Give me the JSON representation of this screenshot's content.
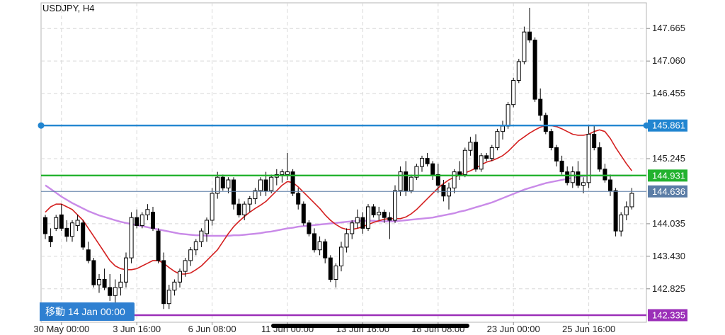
{
  "chart_data": {
    "type": "candlestick",
    "title": "USDJPY, H4",
    "ylim": [
      142.335,
      148.05
    ],
    "y_ticks": [
      "147.665",
      "147.060",
      "146.455",
      "145.245",
      "144.035",
      "143.430",
      "142.825"
    ],
    "x_ticks": [
      "30 May 00:00",
      "3 Jun 16:00",
      "6 Jun 08:00",
      "11 Jun 00:00",
      "13 Jun 16:00",
      "18 Jun 08:00",
      "23 Jun 00:00",
      "25 Jun 16:00"
    ],
    "x_tick_bars": [
      3,
      17,
      31,
      45,
      59,
      73,
      87,
      101
    ],
    "candles": [
      [
        144.15,
        144.2,
        143.75,
        143.85
      ],
      [
        143.8,
        143.95,
        143.6,
        143.7
      ],
      [
        143.95,
        144.2,
        143.9,
        144.15
      ],
      [
        144.2,
        144.4,
        143.9,
        143.95
      ],
      [
        143.95,
        144.1,
        143.7,
        143.8
      ],
      [
        143.8,
        144.1,
        143.7,
        144.05
      ],
      [
        144.0,
        144.2,
        143.9,
        144.1
      ],
      [
        144.05,
        144.1,
        143.55,
        143.6
      ],
      [
        143.55,
        143.7,
        143.3,
        143.35
      ],
      [
        143.35,
        143.4,
        142.85,
        142.9
      ],
      [
        142.9,
        143.1,
        142.75,
        143.0
      ],
      [
        143.0,
        143.2,
        142.8,
        142.85
      ],
      [
        142.85,
        143.1,
        142.6,
        142.7
      ],
      [
        142.7,
        143.0,
        142.5,
        142.85
      ],
      [
        142.85,
        143.1,
        142.7,
        142.95
      ],
      [
        142.95,
        143.5,
        142.85,
        143.4
      ],
      [
        143.4,
        144.25,
        143.3,
        144.15
      ],
      [
        144.15,
        144.3,
        143.95,
        144.0
      ],
      [
        144.0,
        144.25,
        143.95,
        144.2
      ],
      [
        144.2,
        144.4,
        144.1,
        144.3
      ],
      [
        144.25,
        144.35,
        143.9,
        143.95
      ],
      [
        143.9,
        143.95,
        143.3,
        143.35
      ],
      [
        143.35,
        143.5,
        142.45,
        142.55
      ],
      [
        142.55,
        142.9,
        142.45,
        142.8
      ],
      [
        142.8,
        143.0,
        142.7,
        142.95
      ],
      [
        142.95,
        143.2,
        142.85,
        143.15
      ],
      [
        143.15,
        143.4,
        143.05,
        143.35
      ],
      [
        143.35,
        143.6,
        143.25,
        143.55
      ],
      [
        143.55,
        143.75,
        143.45,
        143.7
      ],
      [
        143.7,
        143.95,
        143.6,
        143.9
      ],
      [
        143.85,
        144.15,
        143.7,
        144.1
      ],
      [
        144.1,
        144.7,
        144.0,
        144.6
      ],
      [
        144.6,
        145.0,
        144.5,
        144.9
      ],
      [
        144.9,
        144.95,
        144.65,
        144.7
      ],
      [
        144.7,
        144.9,
        144.6,
        144.85
      ],
      [
        144.85,
        144.9,
        144.3,
        144.4
      ],
      [
        144.4,
        144.5,
        144.15,
        144.2
      ],
      [
        144.2,
        144.45,
        144.1,
        144.4
      ],
      [
        144.4,
        144.55,
        144.25,
        144.5
      ],
      [
        144.5,
        144.7,
        144.4,
        144.65
      ],
      [
        144.65,
        144.9,
        144.55,
        144.85
      ],
      [
        144.85,
        145.0,
        144.55,
        144.65
      ],
      [
        144.65,
        144.95,
        144.6,
        144.9
      ],
      [
        144.9,
        145.05,
        144.75,
        144.95
      ],
      [
        144.95,
        145.05,
        144.8,
        145.0
      ],
      [
        144.95,
        145.35,
        144.85,
        145.0
      ],
      [
        145.0,
        145.05,
        144.55,
        144.6
      ],
      [
        144.6,
        144.7,
        144.3,
        144.4
      ],
      [
        144.4,
        144.45,
        144.0,
        144.05
      ],
      [
        144.05,
        144.1,
        143.8,
        143.85
      ],
      [
        143.85,
        143.95,
        143.5,
        143.55
      ],
      [
        143.55,
        143.8,
        143.45,
        143.7
      ],
      [
        143.7,
        143.75,
        143.3,
        143.4
      ],
      [
        143.4,
        143.45,
        142.95,
        143.0
      ],
      [
        143.0,
        143.3,
        142.85,
        143.25
      ],
      [
        143.25,
        143.7,
        143.15,
        143.6
      ],
      [
        143.6,
        143.95,
        143.5,
        143.85
      ],
      [
        143.85,
        144.1,
        143.75,
        144.05
      ],
      [
        144.05,
        144.3,
        143.95,
        144.15
      ],
      [
        144.15,
        144.25,
        143.85,
        143.95
      ],
      [
        143.95,
        144.4,
        143.9,
        144.35
      ],
      [
        144.35,
        144.4,
        144.15,
        144.2
      ],
      [
        144.2,
        144.35,
        144.1,
        144.25
      ],
      [
        144.25,
        144.3,
        144.05,
        144.15
      ],
      [
        144.15,
        144.25,
        143.75,
        144.1
      ],
      [
        144.1,
        144.75,
        144.05,
        144.65
      ],
      [
        144.65,
        145.1,
        144.55,
        145.0
      ],
      [
        145.0,
        145.2,
        144.55,
        144.65
      ],
      [
        144.65,
        144.95,
        144.6,
        144.9
      ],
      [
        144.9,
        145.15,
        144.85,
        145.1
      ],
      [
        145.1,
        145.3,
        145.0,
        145.25
      ],
      [
        145.25,
        145.35,
        145.1,
        145.15
      ],
      [
        145.15,
        145.2,
        144.85,
        144.95
      ],
      [
        144.95,
        145.15,
        144.6,
        144.75
      ],
      [
        144.75,
        144.85,
        144.45,
        144.55
      ],
      [
        144.55,
        144.8,
        144.3,
        144.7
      ],
      [
        144.7,
        145.05,
        144.6,
        145.0
      ],
      [
        145.0,
        145.2,
        144.85,
        144.95
      ],
      [
        144.95,
        145.45,
        144.9,
        145.4
      ],
      [
        145.4,
        145.65,
        145.3,
        145.55
      ],
      [
        145.55,
        145.7,
        145.0,
        145.05
      ],
      [
        145.05,
        145.35,
        145.0,
        145.3
      ],
      [
        145.3,
        145.35,
        145.2,
        145.25
      ],
      [
        145.25,
        145.5,
        145.2,
        145.45
      ],
      [
        145.45,
        145.8,
        145.4,
        145.75
      ],
      [
        145.75,
        145.95,
        145.6,
        145.85
      ],
      [
        145.85,
        146.3,
        145.8,
        146.25
      ],
      [
        146.25,
        146.75,
        146.2,
        146.7
      ],
      [
        146.7,
        147.1,
        146.65,
        147.05
      ],
      [
        147.05,
        147.7,
        147.0,
        147.6
      ],
      [
        147.6,
        148.05,
        147.4,
        147.45
      ],
      [
        147.45,
        147.5,
        146.3,
        146.35
      ],
      [
        146.35,
        146.55,
        145.95,
        146.05
      ],
      [
        146.05,
        146.1,
        145.7,
        145.75
      ],
      [
        145.75,
        145.8,
        145.4,
        145.45
      ],
      [
        145.45,
        145.5,
        145.1,
        145.2
      ],
      [
        145.2,
        145.3,
        144.95,
        145.0
      ],
      [
        145.0,
        145.1,
        144.75,
        144.8
      ],
      [
        144.8,
        145.1,
        144.7,
        145.0
      ],
      [
        145.0,
        145.2,
        144.7,
        144.75
      ],
      [
        144.75,
        144.9,
        144.6,
        144.8
      ],
      [
        144.8,
        145.85,
        144.7,
        145.7
      ],
      [
        145.7,
        145.85,
        145.4,
        145.45
      ],
      [
        145.45,
        145.55,
        145.0,
        145.05
      ],
      [
        145.05,
        145.15,
        144.8,
        144.85
      ],
      [
        144.85,
        144.95,
        144.55,
        144.65
      ],
      [
        144.65,
        144.7,
        143.8,
        143.9
      ],
      [
        143.9,
        144.25,
        143.8,
        144.2
      ],
      [
        144.2,
        144.45,
        144.1,
        144.35
      ],
      [
        144.35,
        144.7,
        144.3,
        144.6
      ]
    ],
    "ma_red": [
      144.25,
      144.35,
      144.4,
      144.4,
      144.35,
      144.3,
      144.2,
      144.1,
      143.95,
      143.8,
      143.65,
      143.5,
      143.35,
      143.25,
      143.2,
      143.18,
      143.18,
      143.2,
      143.25,
      143.3,
      143.35,
      143.35,
      143.3,
      143.22,
      143.15,
      143.1,
      143.1,
      143.12,
      143.18,
      143.25,
      143.35,
      143.45,
      143.55,
      143.7,
      143.85,
      143.98,
      144.08,
      144.17,
      144.25,
      144.32,
      144.38,
      144.45,
      144.55,
      144.65,
      144.75,
      144.82,
      144.8,
      144.72,
      144.62,
      144.52,
      144.42,
      144.32,
      144.2,
      144.1,
      144.02,
      143.96,
      143.93,
      143.93,
      143.95,
      143.98,
      144.02,
      144.06,
      144.09,
      144.12,
      144.13,
      144.13,
      144.13,
      144.16,
      144.22,
      144.3,
      144.4,
      144.5,
      144.6,
      144.7,
      144.78,
      144.85,
      144.9,
      144.94,
      144.98,
      145.02,
      145.07,
      145.13,
      145.18,
      145.21,
      145.25,
      145.3,
      145.38,
      145.48,
      145.58,
      145.65,
      145.72,
      145.78,
      145.83,
      145.86,
      145.86,
      145.84,
      145.8,
      145.75,
      145.7,
      145.68,
      145.68,
      145.7,
      145.75,
      145.78,
      145.75,
      145.62,
      145.45,
      145.3,
      145.15,
      145.02
    ],
    "ma_purple": [
      144.75,
      144.68,
      144.61,
      144.54,
      144.48,
      144.42,
      144.37,
      144.32,
      144.27,
      144.23,
      144.19,
      144.16,
      144.13,
      144.1,
      144.07,
      144.05,
      144.03,
      144.01,
      143.99,
      143.97,
      143.95,
      143.93,
      143.91,
      143.89,
      143.87,
      143.85,
      143.84,
      143.83,
      143.82,
      143.82,
      143.81,
      143.81,
      143.81,
      143.81,
      143.81,
      143.82,
      143.82,
      143.83,
      143.84,
      143.85,
      143.86,
      143.88,
      143.89,
      143.91,
      143.93,
      143.95,
      143.96,
      143.98,
      143.99,
      144.0,
      144.01,
      144.02,
      144.03,
      144.04,
      144.05,
      144.06,
      144.07,
      144.08,
      144.09,
      144.09,
      144.09,
      144.09,
      144.08,
      144.08,
      144.08,
      144.08,
      144.09,
      144.1,
      144.11,
      144.12,
      144.13,
      144.14,
      144.15,
      144.17,
      144.19,
      144.21,
      144.23,
      144.26,
      144.28,
      144.31,
      144.34,
      144.37,
      144.4,
      144.43,
      144.47,
      144.51,
      144.55,
      144.59,
      144.63,
      144.67,
      144.7,
      144.73,
      144.76,
      144.79,
      144.81,
      144.83,
      144.85,
      144.87,
      144.89,
      144.91,
      144.92,
      144.93,
      144.93,
      144.93,
      144.93,
      144.93,
      144.93,
      144.93,
      144.93,
      144.93
    ],
    "hlines": [
      {
        "label": "145.861",
        "value": 145.861,
        "color": "#2185d0",
        "style": "solid",
        "handles": true
      },
      {
        "label": "144.931",
        "value": 144.931,
        "color": "#22b22e",
        "style": "solid",
        "handles": false
      },
      {
        "label": "144.636",
        "value": 144.636,
        "color": "#5b7da6",
        "style": "thin",
        "handles": false
      },
      {
        "label": "142.335",
        "value": 142.335,
        "color": "#9b2fb8",
        "style": "solid",
        "handles": false
      }
    ],
    "grid": true,
    "colors": {
      "bull": "#ffffff",
      "bear": "#000000",
      "ma_red": "#d42020",
      "ma_purple": "#c98ae8",
      "grid": "#d8d8d8"
    }
  },
  "nav_badge": "移動 14 Jan 00:00"
}
